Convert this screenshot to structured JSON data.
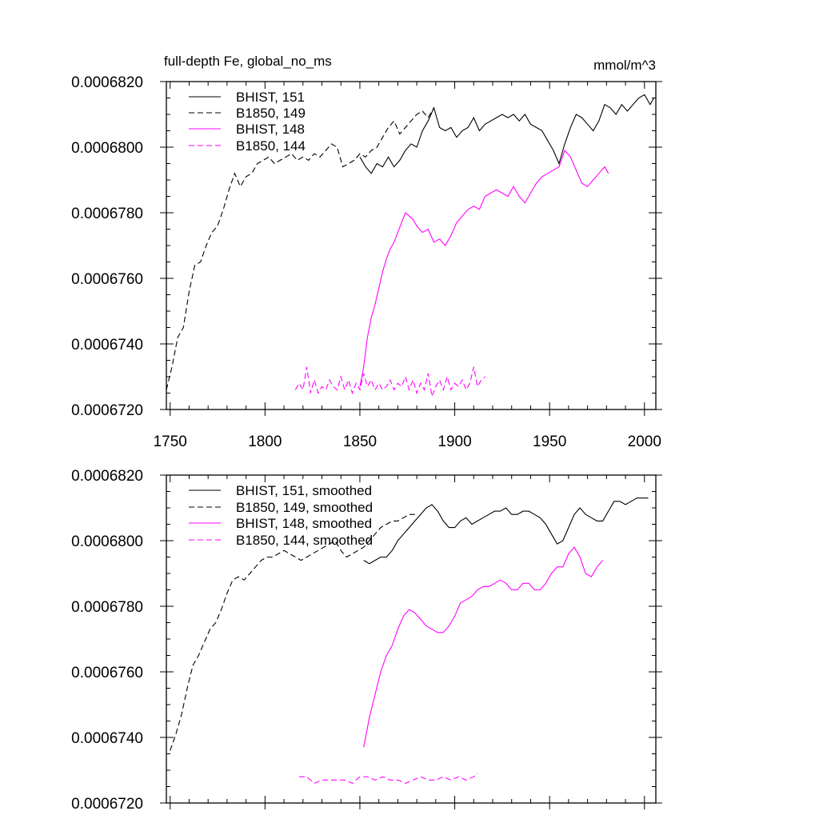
{
  "chart_data": [
    {
      "type": "line",
      "title": "full-depth Fe, global_no_ms",
      "units": "mmol/m^3",
      "xlim": [
        1748,
        2006
      ],
      "ylim": [
        0.000672,
        0.000682
      ],
      "x_ticks": [
        1750,
        1800,
        1850,
        1900,
        1950,
        2000
      ],
      "y_ticks": [
        "0.0006720",
        "0.0006740",
        "0.0006760",
        "0.0006780",
        "0.0006800",
        "0.0006820"
      ],
      "legend": {
        "position": "top-left"
      },
      "series": [
        {
          "name": "BHIST, 151",
          "color": "#000000",
          "dash": "solid",
          "x": [
            1850,
            1853,
            1856,
            1859,
            1862,
            1865,
            1868,
            1871,
            1874,
            1877,
            1880,
            1883,
            1886,
            1889,
            1892,
            1895,
            1898,
            1901,
            1904,
            1907,
            1910,
            1913,
            1916,
            1919,
            1922,
            1925,
            1928,
            1931,
            1934,
            1937,
            1940,
            1943,
            1946,
            1949,
            1952,
            1955,
            1958,
            1961,
            1964,
            1967,
            1970,
            1973,
            1976,
            1979,
            1982,
            1985,
            1988,
            1991,
            1994,
            1997,
            2000,
            2003,
            2005
          ],
          "y": [
            0.0006797,
            0.0006794,
            0.0006792,
            0.0006795,
            0.0006794,
            0.0006797,
            0.0006794,
            0.0006796,
            0.0006799,
            0.0006801,
            0.00068,
            0.0006805,
            0.0006808,
            0.0006812,
            0.0006806,
            0.0006805,
            0.0006806,
            0.0006803,
            0.0006805,
            0.0006806,
            0.0006809,
            0.0006805,
            0.0006807,
            0.0006808,
            0.0006809,
            0.000681,
            0.0006809,
            0.000681,
            0.0006808,
            0.000681,
            0.0006807,
            0.0006806,
            0.0006805,
            0.0006802,
            0.0006799,
            0.0006795,
            0.0006801,
            0.0006806,
            0.000681,
            0.0006809,
            0.0006807,
            0.0006805,
            0.0006808,
            0.0006813,
            0.0006812,
            0.000681,
            0.0006813,
            0.0006811,
            0.0006813,
            0.0006815,
            0.0006816,
            0.0006813,
            0.0006815
          ]
        },
        {
          "name": "B1850, 149",
          "color": "#000000",
          "dash": "dashed",
          "x": [
            1748,
            1751,
            1754,
            1757,
            1760,
            1763,
            1766,
            1769,
            1772,
            1775,
            1778,
            1781,
            1784,
            1787,
            1790,
            1793,
            1796,
            1799,
            1802,
            1805,
            1808,
            1811,
            1814,
            1817,
            1820,
            1823,
            1826,
            1829,
            1832,
            1835,
            1838,
            1841,
            1844,
            1847,
            1850,
            1853,
            1856,
            1859,
            1862,
            1865,
            1868,
            1871,
            1874,
            1877,
            1880,
            1883,
            1886,
            1889
          ],
          "y": [
            0.0006726,
            0.0006733,
            0.0006742,
            0.0006745,
            0.0006756,
            0.0006764,
            0.0006765,
            0.000677,
            0.0006774,
            0.0006776,
            0.0006781,
            0.0006787,
            0.0006792,
            0.0006788,
            0.0006791,
            0.0006792,
            0.0006795,
            0.0006796,
            0.0006797,
            0.0006795,
            0.0006796,
            0.0006797,
            0.0006798,
            0.0006796,
            0.0006797,
            0.0006796,
            0.0006798,
            0.0006797,
            0.0006799,
            0.0006801,
            0.00068,
            0.0006794,
            0.0006795,
            0.0006796,
            0.0006798,
            0.0006797,
            0.0006799,
            0.00068,
            0.0006803,
            0.0006806,
            0.0006808,
            0.0006804,
            0.0006806,
            0.0006808,
            0.000681,
            0.0006811,
            0.0006809,
            0.0006812
          ]
        },
        {
          "name": "BHIST, 148",
          "color": "#ff00ff",
          "dash": "solid",
          "x": [
            1850,
            1852,
            1854,
            1856,
            1858,
            1860,
            1862,
            1864,
            1866,
            1868,
            1870,
            1872,
            1874,
            1876,
            1878,
            1880,
            1883,
            1886,
            1889,
            1892,
            1895,
            1898,
            1901,
            1904,
            1907,
            1910,
            1913,
            1916,
            1919,
            1922,
            1925,
            1928,
            1931,
            1934,
            1937,
            1940,
            1943,
            1946,
            1949,
            1952,
            1955,
            1958,
            1961,
            1964,
            1967,
            1970,
            1973,
            1976,
            1979,
            1981
          ],
          "y": [
            0.0006727,
            0.0006733,
            0.0006742,
            0.0006748,
            0.0006752,
            0.0006757,
            0.0006762,
            0.0006766,
            0.0006769,
            0.0006771,
            0.0006774,
            0.0006777,
            0.000678,
            0.0006779,
            0.0006778,
            0.0006776,
            0.0006774,
            0.0006775,
            0.0006771,
            0.0006772,
            0.000677,
            0.0006773,
            0.0006777,
            0.0006779,
            0.0006781,
            0.0006782,
            0.0006781,
            0.0006785,
            0.0006786,
            0.0006787,
            0.0006786,
            0.0006785,
            0.0006788,
            0.0006785,
            0.0006783,
            0.0006786,
            0.0006789,
            0.0006791,
            0.0006792,
            0.0006793,
            0.0006794,
            0.0006799,
            0.0006797,
            0.0006793,
            0.0006789,
            0.0006788,
            0.000679,
            0.0006792,
            0.0006794,
            0.0006792
          ]
        },
        {
          "name": "B1850, 144",
          "color": "#ff00ff",
          "dash": "dashed",
          "x": [
            1816,
            1818,
            1820,
            1822,
            1824,
            1826,
            1828,
            1830,
            1832,
            1834,
            1836,
            1838,
            1840,
            1842,
            1844,
            1846,
            1848,
            1850,
            1852,
            1854,
            1856,
            1858,
            1860,
            1862,
            1864,
            1866,
            1868,
            1870,
            1872,
            1874,
            1876,
            1878,
            1880,
            1882,
            1884,
            1886,
            1888,
            1890,
            1892,
            1894,
            1896,
            1898,
            1900,
            1902,
            1904,
            1906,
            1908,
            1910,
            1912,
            1914,
            1916
          ],
          "y": [
            0.0006726,
            0.0006728,
            0.0006726,
            0.0006733,
            0.0006725,
            0.0006729,
            0.0006725,
            0.0006727,
            0.0006726,
            0.0006729,
            0.0006727,
            0.0006726,
            0.000673,
            0.0006726,
            0.0006729,
            0.0006725,
            0.0006728,
            0.0006726,
            0.0006731,
            0.0006727,
            0.0006729,
            0.0006726,
            0.0006728,
            0.0006726,
            0.0006727,
            0.0006729,
            0.0006726,
            0.0006728,
            0.0006727,
            0.000673,
            0.0006726,
            0.0006729,
            0.0006725,
            0.0006728,
            0.0006726,
            0.0006731,
            0.0006724,
            0.0006727,
            0.0006729,
            0.0006726,
            0.000673,
            0.0006726,
            0.0006728,
            0.0006727,
            0.0006729,
            0.0006726,
            0.0006728,
            0.0006733,
            0.0006727,
            0.0006729,
            0.000673
          ]
        }
      ]
    },
    {
      "type": "line",
      "title": "",
      "xlim": [
        1748,
        2006
      ],
      "ylim": [
        0.000672,
        0.000682
      ],
      "y_ticks": [
        "0.0006720",
        "0.0006740",
        "0.0006760",
        "0.0006780",
        "0.0006800",
        "0.0006820"
      ],
      "legend": {
        "position": "top-left"
      },
      "series": [
        {
          "name": "BHIST, 151, smoothed",
          "color": "#000000",
          "dash": "solid",
          "x": [
            1852,
            1855,
            1858,
            1861,
            1864,
            1867,
            1870,
            1873,
            1876,
            1879,
            1882,
            1885,
            1888,
            1891,
            1894,
            1897,
            1900,
            1903,
            1906,
            1909,
            1912,
            1915,
            1918,
            1921,
            1924,
            1927,
            1930,
            1933,
            1936,
            1939,
            1942,
            1945,
            1948,
            1951,
            1954,
            1957,
            1960,
            1963,
            1966,
            1969,
            1972,
            1975,
            1978,
            1981,
            1984,
            1987,
            1990,
            1993,
            1996,
            1999,
            2002
          ],
          "y": [
            0.0006794,
            0.0006793,
            0.0006794,
            0.0006795,
            0.0006795,
            0.0006797,
            0.00068,
            0.0006802,
            0.0006804,
            0.0006806,
            0.0006808,
            0.000681,
            0.0006811,
            0.0006809,
            0.0006806,
            0.0006804,
            0.0006804,
            0.0006806,
            0.0006807,
            0.0006805,
            0.0006806,
            0.0006807,
            0.0006808,
            0.0006809,
            0.0006809,
            0.000681,
            0.0006808,
            0.0006808,
            0.0006809,
            0.0006809,
            0.0006808,
            0.0006807,
            0.0006805,
            0.0006802,
            0.0006799,
            0.00068,
            0.0006804,
            0.0006808,
            0.000681,
            0.0006808,
            0.0006807,
            0.0006806,
            0.0006806,
            0.0006809,
            0.0006812,
            0.0006812,
            0.0006811,
            0.0006812,
            0.0006813,
            0.0006813,
            0.0006813
          ]
        },
        {
          "name": "B1850, 149, smoothed",
          "color": "#000000",
          "dash": "dashed",
          "x": [
            1750,
            1753,
            1756,
            1759,
            1762,
            1765,
            1768,
            1771,
            1774,
            1777,
            1780,
            1783,
            1786,
            1789,
            1792,
            1795,
            1798,
            1801,
            1804,
            1807,
            1810,
            1813,
            1816,
            1819,
            1822,
            1825,
            1828,
            1831,
            1834,
            1837,
            1840,
            1843,
            1846,
            1849,
            1852,
            1855,
            1858,
            1861,
            1864,
            1867,
            1870,
            1873,
            1876,
            1879
          ],
          "y": [
            0.0006736,
            0.0006741,
            0.0006747,
            0.0006755,
            0.0006762,
            0.0006765,
            0.0006769,
            0.0006773,
            0.0006775,
            0.0006779,
            0.0006784,
            0.0006788,
            0.0006789,
            0.0006788,
            0.000679,
            0.0006792,
            0.0006794,
            0.0006795,
            0.0006795,
            0.0006796,
            0.0006797,
            0.0006796,
            0.0006795,
            0.0006794,
            0.0006795,
            0.0006796,
            0.0006797,
            0.0006798,
            0.0006799,
            0.00068,
            0.0006797,
            0.0006795,
            0.0006796,
            0.0006797,
            0.0006798,
            0.00068,
            0.0006802,
            0.0006804,
            0.0006805,
            0.0006806,
            0.0006806,
            0.0006807,
            0.0006808,
            0.0006808
          ]
        },
        {
          "name": "BHIST, 148, smoothed",
          "color": "#ff00ff",
          "dash": "solid",
          "x": [
            1852,
            1855,
            1858,
            1861,
            1864,
            1867,
            1870,
            1873,
            1876,
            1879,
            1882,
            1885,
            1888,
            1891,
            1894,
            1897,
            1900,
            1903,
            1906,
            1909,
            1912,
            1915,
            1918,
            1921,
            1924,
            1927,
            1930,
            1933,
            1936,
            1939,
            1942,
            1945,
            1948,
            1951,
            1954,
            1957,
            1960,
            1963,
            1966,
            1969,
            1972,
            1975,
            1978
          ],
          "y": [
            0.0006737,
            0.0006746,
            0.0006753,
            0.000676,
            0.0006765,
            0.0006768,
            0.0006773,
            0.0006777,
            0.0006779,
            0.0006778,
            0.0006776,
            0.0006774,
            0.0006773,
            0.0006772,
            0.0006772,
            0.0006774,
            0.0006777,
            0.0006781,
            0.0006782,
            0.0006783,
            0.0006785,
            0.0006786,
            0.0006786,
            0.0006787,
            0.0006788,
            0.0006787,
            0.0006785,
            0.0006785,
            0.0006787,
            0.0006787,
            0.0006785,
            0.0006785,
            0.0006787,
            0.000679,
            0.0006792,
            0.0006792,
            0.0006796,
            0.0006798,
            0.0006795,
            0.000679,
            0.0006789,
            0.0006792,
            0.0006794
          ]
        },
        {
          "name": "B1850, 144, smoothed",
          "color": "#ff00ff",
          "dash": "dashed",
          "x": [
            1818,
            1822,
            1826,
            1830,
            1834,
            1838,
            1842,
            1846,
            1850,
            1854,
            1858,
            1862,
            1866,
            1870,
            1874,
            1878,
            1882,
            1886,
            1890,
            1894,
            1898,
            1902,
            1906,
            1910,
            1912
          ],
          "y": [
            0.0006728,
            0.0006728,
            0.0006726,
            0.0006727,
            0.0006727,
            0.0006727,
            0.0006727,
            0.0006726,
            0.0006728,
            0.0006728,
            0.0006727,
            0.0006728,
            0.0006727,
            0.0006727,
            0.0006726,
            0.0006727,
            0.0006728,
            0.0006727,
            0.0006727,
            0.0006728,
            0.0006727,
            0.0006728,
            0.0006727,
            0.0006728,
            0.0006729
          ]
        }
      ]
    }
  ]
}
